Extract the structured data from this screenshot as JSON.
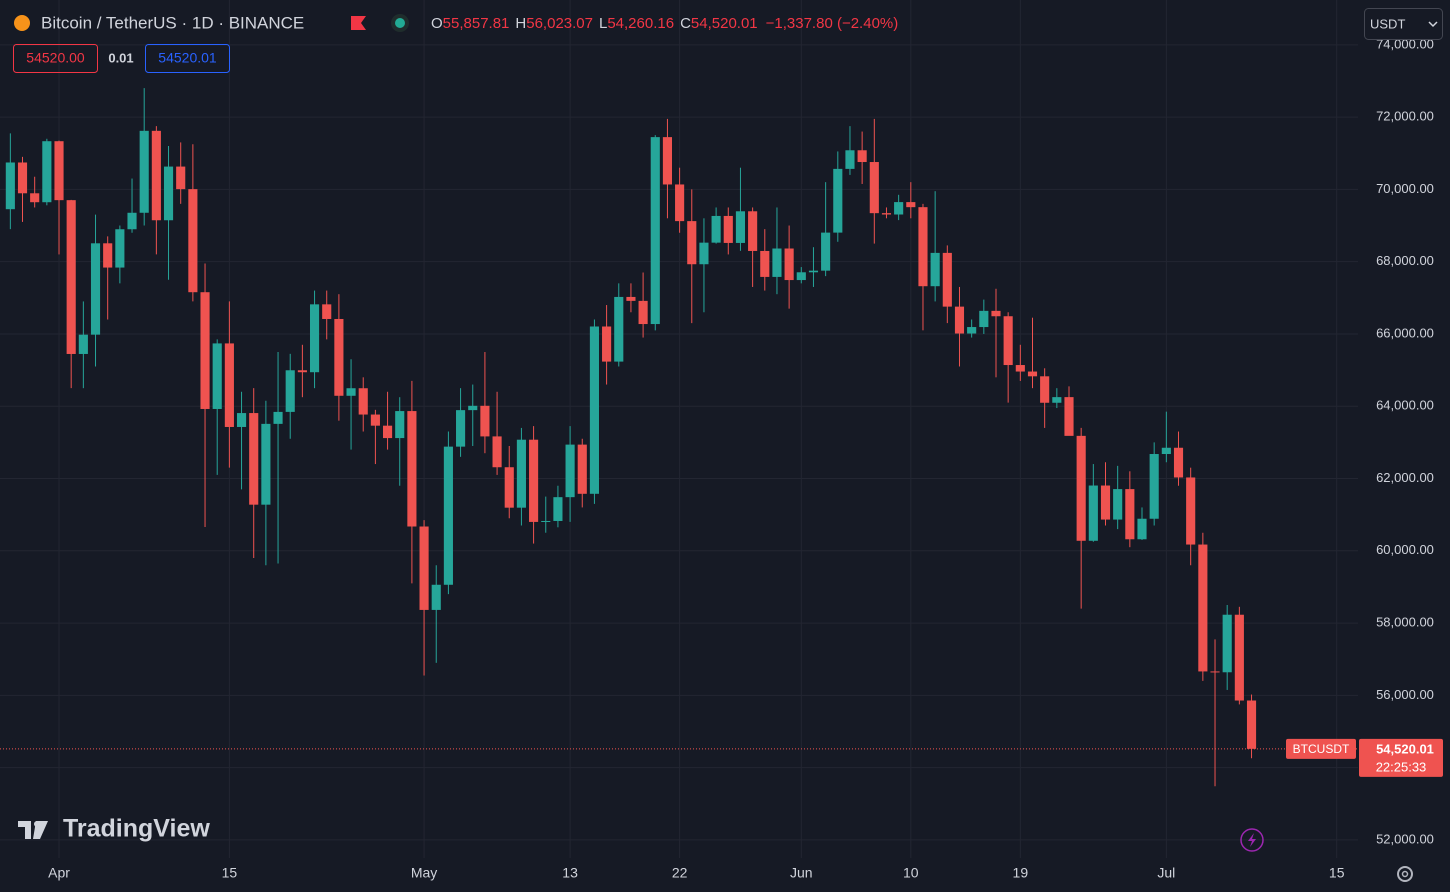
{
  "header": {
    "title": "Bitcoin / TetherUS · 1D · BINANCE",
    "ohlc": [
      {
        "key": "O",
        "value": "55,857.81"
      },
      {
        "key": "H",
        "value": "56,023.07"
      },
      {
        "key": "L",
        "value": "54,260.16"
      },
      {
        "key": "C",
        "value": "54,520.01"
      }
    ],
    "change": "−1,337.80 (−2.40%)",
    "sell": "54520.00",
    "spread": "0.01",
    "buy": "54520.01",
    "currency": "USDT",
    "symbol_label": "BTCUSDT",
    "countdown": "22:25:33",
    "logo": "TradingView"
  },
  "chart_data": {
    "type": "candlestick",
    "up_color": "#26a69a",
    "down_color": "#ef5350",
    "grid": true,
    "x": [
      -4,
      -3,
      -2,
      -1,
      0,
      1,
      2,
      3,
      4,
      5,
      6,
      7,
      8,
      9,
      10,
      11,
      12,
      13,
      14,
      15,
      16,
      17,
      18,
      19,
      20,
      21,
      22,
      23,
      24,
      25,
      26,
      27,
      28,
      29,
      30,
      31,
      32,
      33,
      34,
      35,
      36,
      37,
      38,
      39,
      40,
      41,
      42,
      43,
      44,
      45,
      46,
      47,
      48,
      49,
      50,
      51,
      52,
      53,
      54,
      55,
      56,
      57,
      58,
      59,
      60,
      61,
      62,
      63,
      64,
      65,
      66,
      67,
      68,
      69,
      70,
      71,
      72,
      73,
      74,
      75,
      76,
      77,
      78,
      79,
      80,
      81,
      82,
      83,
      84,
      85,
      86,
      87,
      88,
      89,
      90,
      91,
      92,
      93,
      94,
      95,
      96,
      97,
      98
    ],
    "open": [
      69452,
      70744,
      69892,
      69645,
      71333,
      69702,
      65446,
      65980,
      68508,
      67837,
      68897,
      69353,
      71620,
      69146,
      70631,
      70007,
      67155,
      63924,
      65738,
      63426,
      63811,
      61276,
      63512,
      63843,
      64995,
      64941,
      66819,
      66414,
      64289,
      64498,
      63770,
      63462,
      63119,
      63866,
      60672,
      58364,
      59060,
      62882,
      63892,
      64012,
      63165,
      62312,
      61193,
      63074,
      60799,
      60825,
      61484,
      62938,
      61577,
      66206,
      65235,
      67024,
      66915,
      66274,
      71446,
      70136,
      69122,
      67929,
      68526,
      69265,
      68518,
      69394,
      68296,
      67578,
      68364,
      67491,
      67706,
      67751,
      68804,
      70567,
      71082,
      70757,
      69342,
      69305,
      69648,
      69508,
      67321,
      68243,
      66756,
      66012,
      66191,
      66639,
      66490,
      65140,
      64960,
      64828,
      64096,
      64252,
      63180,
      60277,
      61806,
      60864,
      61707,
      60319,
      60887,
      62678,
      62851,
      62029,
      60173,
      56662,
      56639,
      58231,
      55857.81
    ],
    "high": [
      71550,
      70900,
      70350,
      71400,
      71350,
      69710,
      66900,
      69300,
      68700,
      69000,
      70300,
      72800,
      71750,
      71200,
      71300,
      71250,
      67950,
      65850,
      66900,
      64400,
      64500,
      64150,
      65500,
      65450,
      65700,
      67200,
      67200,
      67100,
      65300,
      64800,
      63900,
      64400,
      64250,
      64700,
      60850,
      59600,
      63300,
      64500,
      64600,
      65500,
      64400,
      62900,
      63400,
      63450,
      61500,
      61800,
      63450,
      63100,
      66400,
      66800,
      67400,
      67400,
      67700,
      71500,
      71950,
      70600,
      70000,
      69200,
      69500,
      69500,
      70600,
      69500,
      68900,
      69500,
      69000,
      67850,
      68400,
      70200,
      71050,
      71750,
      71600,
      71950,
      69500,
      69850,
      70200,
      69600,
      69950,
      68450,
      67300,
      66400,
      66950,
      67250,
      66600,
      65700,
      66450,
      65050,
      64500,
      64550,
      63400,
      62400,
      62450,
      62350,
      62200,
      61200,
      63000,
      63850,
      63300,
      62300,
      60500,
      57550,
      58500,
      58450,
      56023.07
    ],
    "low": [
      68900,
      69100,
      69500,
      69560,
      68200,
      64500,
      64500,
      65100,
      66400,
      67400,
      68800,
      69000,
      68200,
      67500,
      69600,
      66900,
      60660,
      62100,
      62300,
      61700,
      59800,
      59600,
      59650,
      63100,
      64250,
      64500,
      65850,
      63600,
      62800,
      63300,
      62400,
      62800,
      61800,
      59100,
      56550,
      56900,
      58800,
      62600,
      62900,
      62700,
      62100,
      60900,
      60700,
      60200,
      60500,
      60650,
      60800,
      61200,
      61300,
      64600,
      65100,
      66600,
      65900,
      66100,
      69200,
      68800,
      66300,
      66600,
      68500,
      68200,
      68300,
      67300,
      67200,
      67100,
      66700,
      67400,
      67300,
      67600,
      68550,
      70400,
      70150,
      68500,
      69200,
      69150,
      69200,
      66100,
      66900,
      66300,
      65100,
      65900,
      66000,
      64800,
      64100,
      64700,
      64500,
      63400,
      63950,
      63200,
      58400,
      60250,
      60700,
      60600,
      60100,
      60300,
      60700,
      62450,
      61800,
      59600,
      56400,
      53485,
      56150,
      55750,
      54260.16
    ],
    "close": [
      70744,
      69892,
      69645,
      71333,
      69702,
      65446,
      65980,
      68508,
      67837,
      68897,
      69353,
      71620,
      69146,
      70631,
      70007,
      67155,
      63924,
      65738,
      63426,
      63811,
      61276,
      63512,
      63843,
      64995,
      64941,
      66819,
      66414,
      64289,
      64498,
      63770,
      63462,
      63119,
      63866,
      60672,
      58364,
      59060,
      62882,
      63892,
      64012,
      63165,
      62312,
      61193,
      63074,
      60799,
      60825,
      61484,
      62938,
      61577,
      66206,
      65235,
      67024,
      66915,
      66274,
      71446,
      70136,
      69122,
      67929,
      68526,
      69265,
      68518,
      69394,
      68296,
      67578,
      68364,
      67491,
      67706,
      67751,
      68804,
      70567,
      71082,
      70757,
      69342,
      69305,
      69648,
      69508,
      67321,
      68243,
      66756,
      66012,
      66191,
      66639,
      66490,
      65140,
      64960,
      64828,
      64096,
      64252,
      63180,
      60277,
      61806,
      60864,
      61707,
      60319,
      60887,
      62678,
      62851,
      62029,
      60173,
      56662,
      56639,
      58231,
      55857,
      54520.01
    ],
    "xlim": [
      -4.85,
      106.75
    ],
    "xticks": [
      {
        "value": 0,
        "label": "Apr"
      },
      {
        "value": 14,
        "label": "15"
      },
      {
        "value": 30,
        "label": "May"
      },
      {
        "value": 42,
        "label": "13"
      },
      {
        "value": 51,
        "label": "22"
      },
      {
        "value": 61,
        "label": "Jun"
      },
      {
        "value": 70,
        "label": "10"
      },
      {
        "value": 79,
        "label": "19"
      },
      {
        "value": 91,
        "label": "Jul"
      },
      {
        "value": 105,
        "label": "15"
      }
    ],
    "ylim": [
      51500,
      75240
    ],
    "yticks": [
      {
        "value": 52000,
        "label": "52,000.00"
      },
      {
        "value": 54000,
        "label": "54,000.00"
      },
      {
        "value": 56000,
        "label": "56,000.00"
      },
      {
        "value": 58000,
        "label": "58,000.00"
      },
      {
        "value": 60000,
        "label": "60,000.00"
      },
      {
        "value": 62000,
        "label": "62,000.00"
      },
      {
        "value": 64000,
        "label": "64,000.00"
      },
      {
        "value": 66000,
        "label": "66,000.00"
      },
      {
        "value": 68000,
        "label": "68,000.00"
      },
      {
        "value": 70000,
        "label": "70,000.00"
      },
      {
        "value": 72000,
        "label": "72,000.00"
      },
      {
        "value": 74000,
        "label": "74,000.00"
      }
    ],
    "last_price": {
      "value": 54520.01,
      "label": "54,520.01"
    }
  }
}
